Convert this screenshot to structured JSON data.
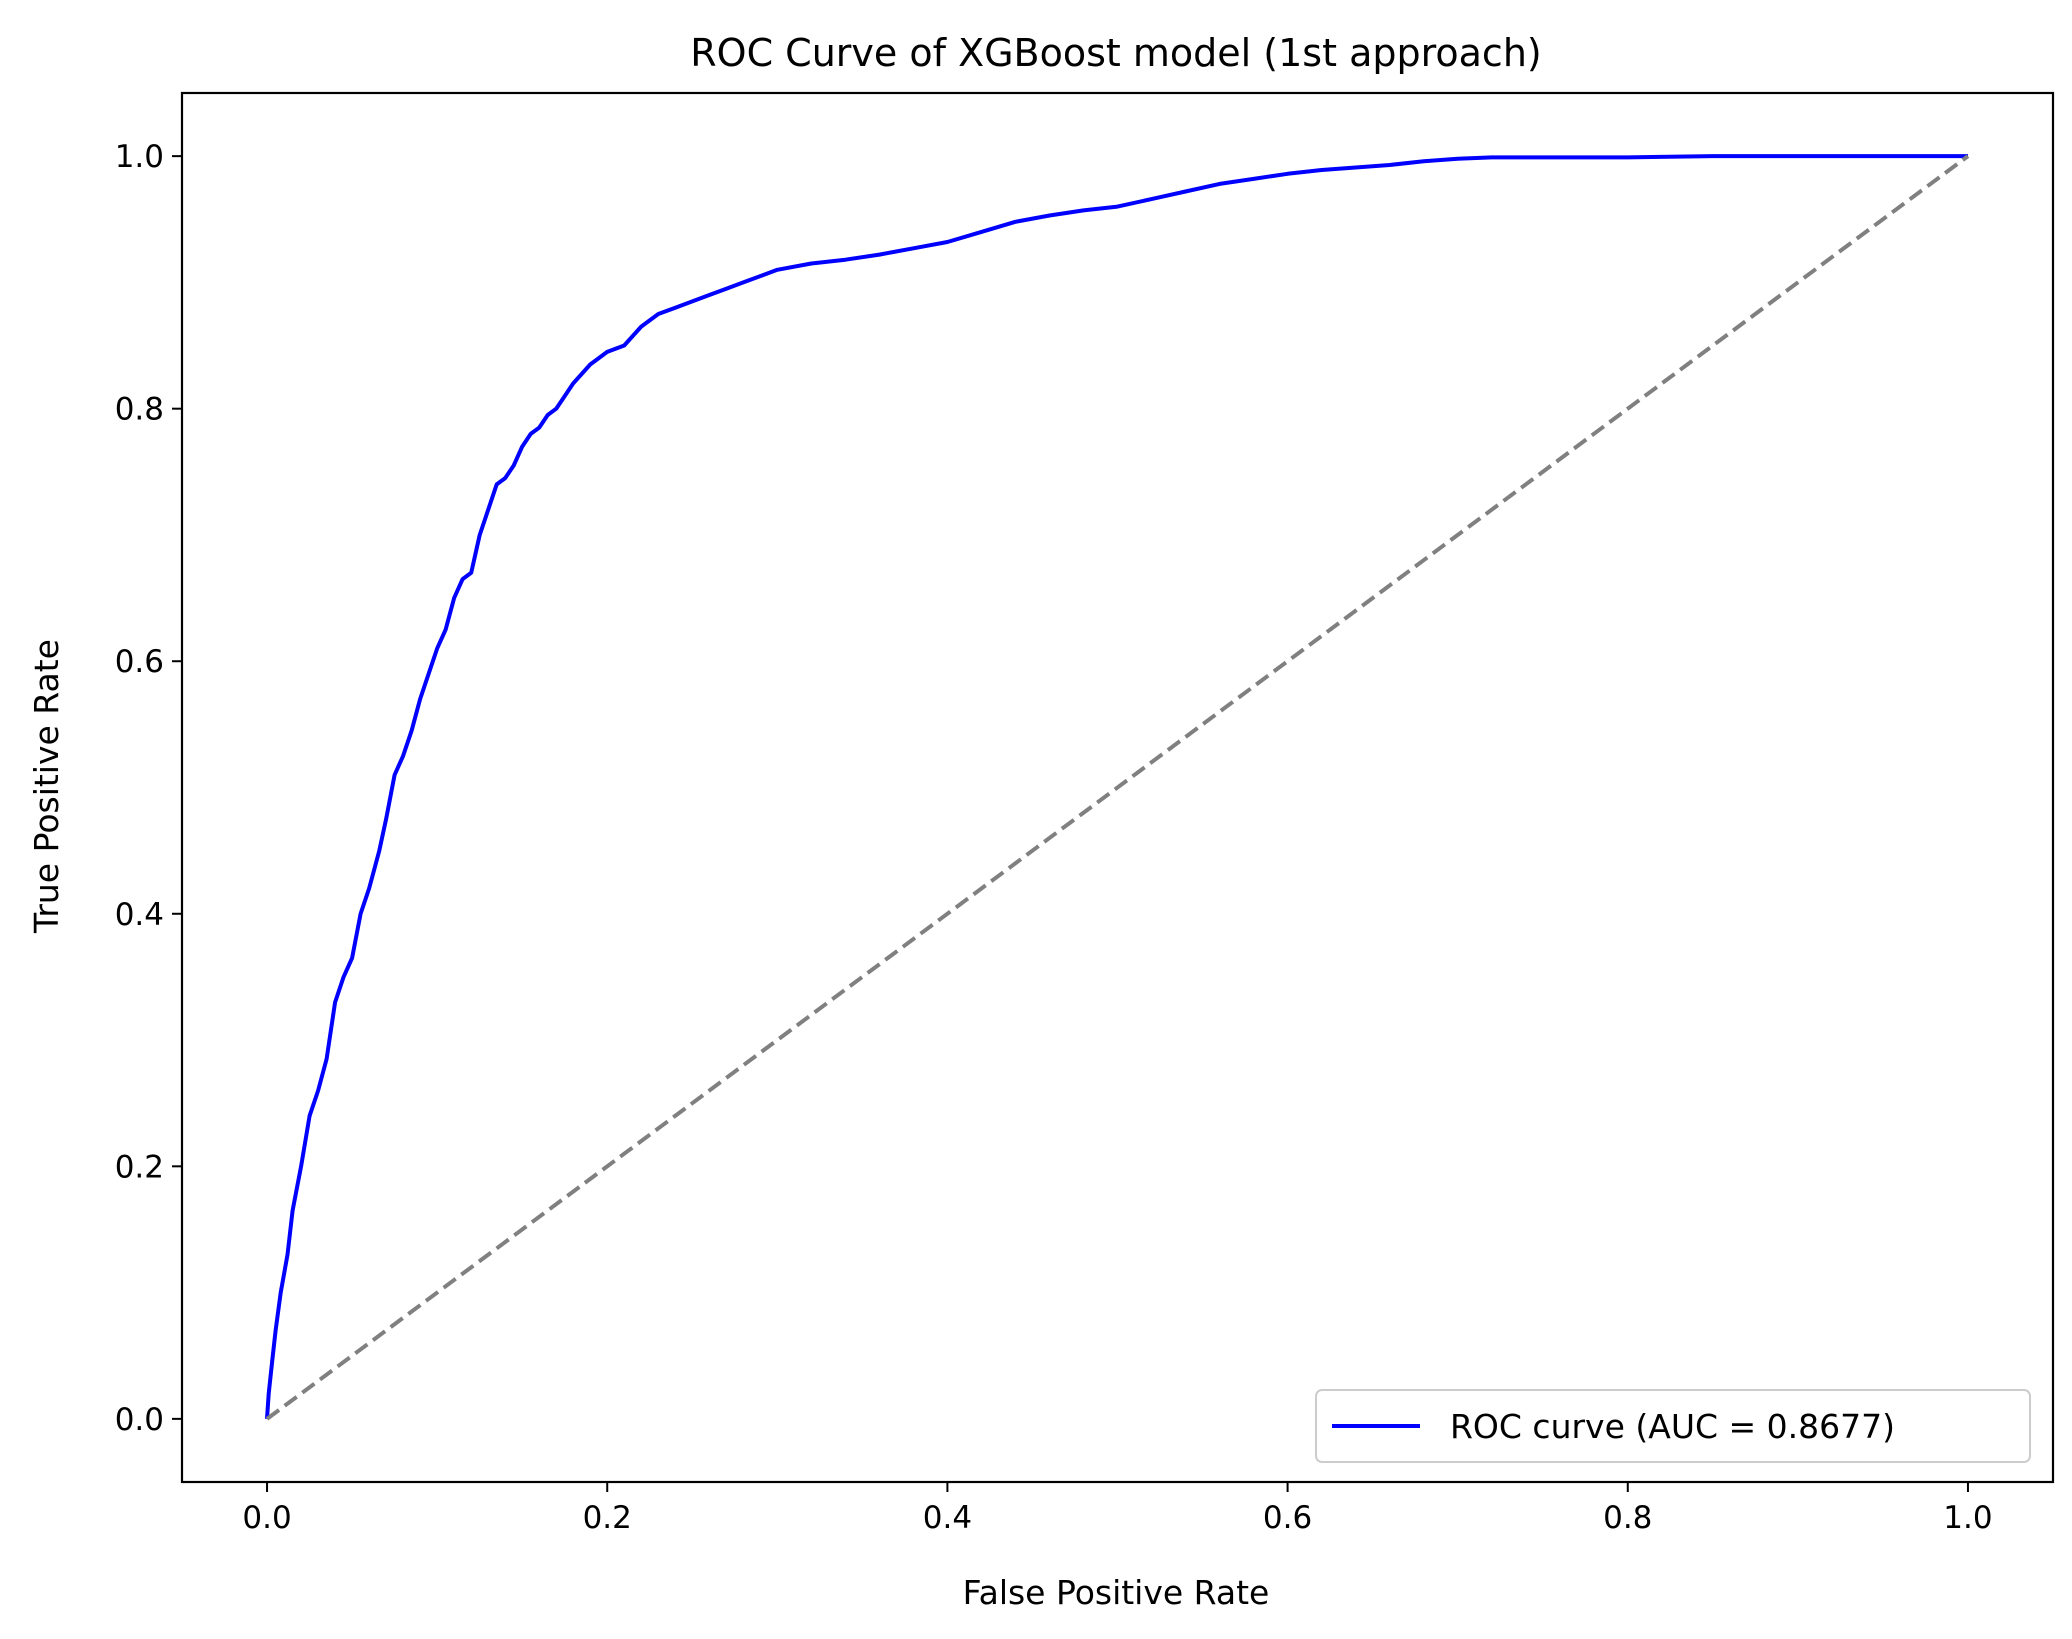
{
  "chart_data": {
    "type": "line",
    "title": "ROC Curve of XGBoost model (1st approach)",
    "xlabel": "False Positive Rate",
    "ylabel": "True Positive Rate",
    "xlim": [
      -0.05,
      1.05
    ],
    "ylim": [
      -0.05,
      1.05
    ],
    "xticks": [
      0.0,
      0.2,
      0.4,
      0.6,
      0.8,
      1.0
    ],
    "yticks": [
      0.0,
      0.2,
      0.4,
      0.6,
      0.8,
      1.0
    ],
    "xtick_labels": [
      "0.0",
      "0.2",
      "0.4",
      "0.6",
      "0.8",
      "1.0"
    ],
    "ytick_labels": [
      "0.0",
      "0.2",
      "0.4",
      "0.6",
      "0.8",
      "1.0"
    ],
    "grid": false,
    "legend_position": "lower-right",
    "series": [
      {
        "name": "ROC curve (AUC = 0.8677)",
        "color": "#0000ff",
        "style": "solid",
        "x": [
          0.0,
          0.001,
          0.003,
          0.005,
          0.008,
          0.012,
          0.015,
          0.02,
          0.025,
          0.03,
          0.035,
          0.04,
          0.045,
          0.05,
          0.055,
          0.06,
          0.063,
          0.066,
          0.07,
          0.075,
          0.08,
          0.085,
          0.09,
          0.095,
          0.1,
          0.105,
          0.11,
          0.115,
          0.12,
          0.125,
          0.13,
          0.135,
          0.14,
          0.145,
          0.15,
          0.155,
          0.16,
          0.165,
          0.17,
          0.175,
          0.18,
          0.19,
          0.2,
          0.21,
          0.22,
          0.23,
          0.24,
          0.25,
          0.26,
          0.27,
          0.28,
          0.3,
          0.32,
          0.34,
          0.36,
          0.38,
          0.4,
          0.42,
          0.44,
          0.46,
          0.48,
          0.5,
          0.52,
          0.54,
          0.56,
          0.58,
          0.6,
          0.62,
          0.64,
          0.66,
          0.68,
          0.7,
          0.72,
          0.75,
          0.8,
          0.85,
          0.9,
          0.95,
          1.0
        ],
        "y": [
          0.0,
          0.02,
          0.045,
          0.07,
          0.1,
          0.13,
          0.165,
          0.2,
          0.24,
          0.26,
          0.285,
          0.33,
          0.35,
          0.365,
          0.4,
          0.42,
          0.435,
          0.45,
          0.475,
          0.51,
          0.525,
          0.545,
          0.57,
          0.59,
          0.61,
          0.625,
          0.65,
          0.665,
          0.67,
          0.7,
          0.72,
          0.74,
          0.745,
          0.755,
          0.77,
          0.78,
          0.785,
          0.795,
          0.8,
          0.81,
          0.82,
          0.835,
          0.845,
          0.85,
          0.865,
          0.875,
          0.88,
          0.885,
          0.89,
          0.895,
          0.9,
          0.91,
          0.915,
          0.918,
          0.922,
          0.927,
          0.932,
          0.94,
          0.948,
          0.953,
          0.957,
          0.96,
          0.966,
          0.972,
          0.978,
          0.982,
          0.986,
          0.989,
          0.991,
          0.993,
          0.996,
          0.998,
          0.999,
          0.999,
          0.999,
          1.0,
          1.0,
          1.0,
          1.0
        ]
      },
      {
        "color": "#808080",
        "style": "dashed",
        "x": [
          0.0,
          1.0
        ],
        "y": [
          0.0,
          1.0
        ]
      }
    ]
  }
}
